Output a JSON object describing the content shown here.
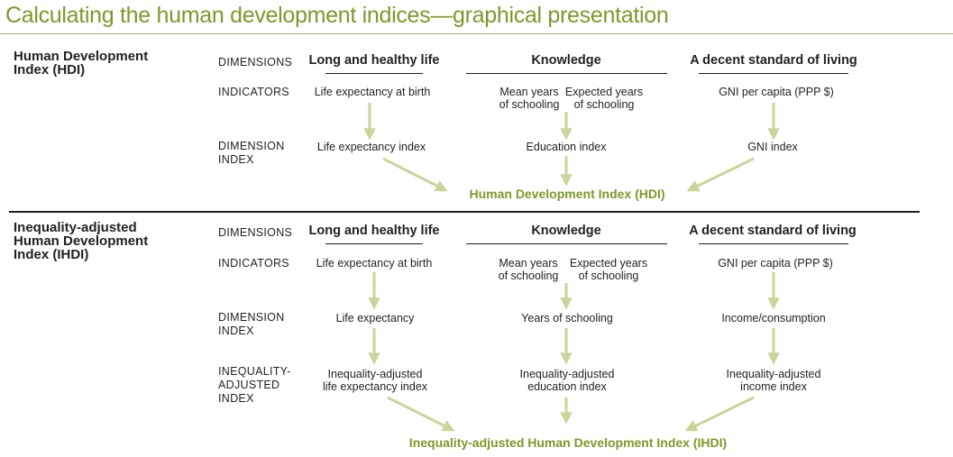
{
  "title": "Calculating the human development indices—graphical presentation",
  "colors": {
    "accent": "#7a9a2a",
    "arrow": "#cad59a",
    "text": "#231f20"
  },
  "hdi": {
    "label": [
      "Human Development",
      "Index (HDI)"
    ],
    "rows": {
      "dimensions": "DIMENSIONS",
      "indicators": "INDICATORS",
      "dimension_index": [
        "DIMENSION",
        "INDEX"
      ]
    },
    "dimensions": {
      "health": "Long and healthy life",
      "knowledge": "Knowledge",
      "living": "A decent standard of living"
    },
    "indicators": {
      "health": "Life expectancy at birth",
      "mys": [
        "Mean years",
        "of schooling"
      ],
      "eys": [
        "Expected years",
        "of schooling"
      ],
      "income": "GNI per capita (PPP $)"
    },
    "indices": {
      "health": "Life expectancy index",
      "knowledge": "Education index",
      "living": "GNI index"
    },
    "result": "Human Development Index (HDI)"
  },
  "ihdi": {
    "label": [
      "Inequality-adjusted",
      "Human Development",
      "Index (IHDI)"
    ],
    "rows": {
      "dimensions": "DIMENSIONS",
      "indicators": "INDICATORS",
      "dimension_index": [
        "DIMENSION",
        "INDEX"
      ],
      "inequality_index": [
        "INEQUALITY-",
        "ADJUSTED",
        "INDEX"
      ]
    },
    "dimensions": {
      "health": "Long and healthy life",
      "knowledge": "Knowledge",
      "living": "A decent standard of living"
    },
    "indicators": {
      "health": "Life expectancy at birth",
      "mys": [
        "Mean years",
        "of schooling"
      ],
      "eys": [
        "Expected years",
        "of schooling"
      ],
      "income": "GNI per capita (PPP $)"
    },
    "dimension_index": {
      "health": "Life expectancy",
      "knowledge": "Years of schooling",
      "living": "Income/consumption"
    },
    "inequality_index": {
      "health": [
        "Inequality-adjusted",
        "life expectancy index"
      ],
      "knowledge": [
        "Inequality-adjusted",
        "education index"
      ],
      "living": [
        "Inequality-adjusted",
        "income index"
      ]
    },
    "result": "Inequality-adjusted Human Development Index (IHDI)"
  }
}
